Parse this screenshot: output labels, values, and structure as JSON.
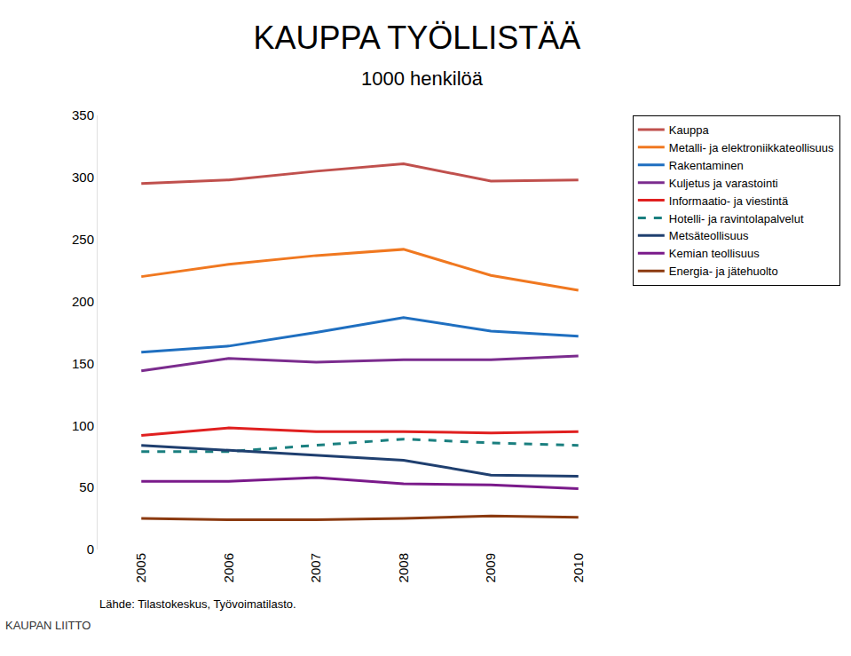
{
  "chart_data": {
    "type": "line",
    "title": "KAUPPA TYÖLLISTÄÄ",
    "subtitle": "1000 henkilöä",
    "annotations": [
      "Lähde: Tilastokeskus, Työvoimatilasto.",
      "KAUPAN LIITTO"
    ],
    "categories": [
      "2005",
      "2006",
      "2007",
      "2008",
      "2009",
      "2010"
    ],
    "series": [
      {
        "name": "Kauppa",
        "color": "#c0504d",
        "values": [
          295,
          298,
          305,
          311,
          297,
          298
        ]
      },
      {
        "name": "Metalli- ja elektroniikkateollisuus",
        "color": "#f07820",
        "values": [
          220,
          230,
          237,
          242,
          221,
          209
        ]
      },
      {
        "name": "Rakentaminen",
        "color": "#1f6fc0",
        "values": [
          159,
          164,
          175,
          187,
          176,
          172
        ]
      },
      {
        "name": "Kuljetus ja varastointi",
        "color": "#7b2c8e",
        "values": [
          144,
          154,
          151,
          153,
          153,
          156
        ]
      },
      {
        "name": "Informaatio- ja viestintä",
        "color": "#e02020",
        "values": [
          92,
          98,
          95,
          95,
          94,
          95
        ]
      },
      {
        "name": "Hotelli- ja ravintolapalvelut",
        "color": "#1a7f7f",
        "line_style": "dashed",
        "values": [
          79,
          79,
          84,
          89,
          86,
          84
        ]
      },
      {
        "name": "Metsäteollisuus",
        "color": "#1f3f6f",
        "values": [
          84,
          80,
          76,
          72,
          60,
          59
        ]
      },
      {
        "name": "Kemian teollisuus",
        "color": "#7a1a8a",
        "values": [
          55,
          55,
          58,
          53,
          52,
          49
        ]
      },
      {
        "name": "Energia- ja jätehuolto",
        "color": "#8b3a10",
        "values": [
          25,
          24,
          24,
          25,
          27,
          26
        ]
      }
    ],
    "ylim": [
      0,
      350
    ],
    "yticks": [
      0,
      50,
      100,
      150,
      200,
      250,
      300,
      350
    ],
    "grid": false,
    "legend": "right"
  }
}
